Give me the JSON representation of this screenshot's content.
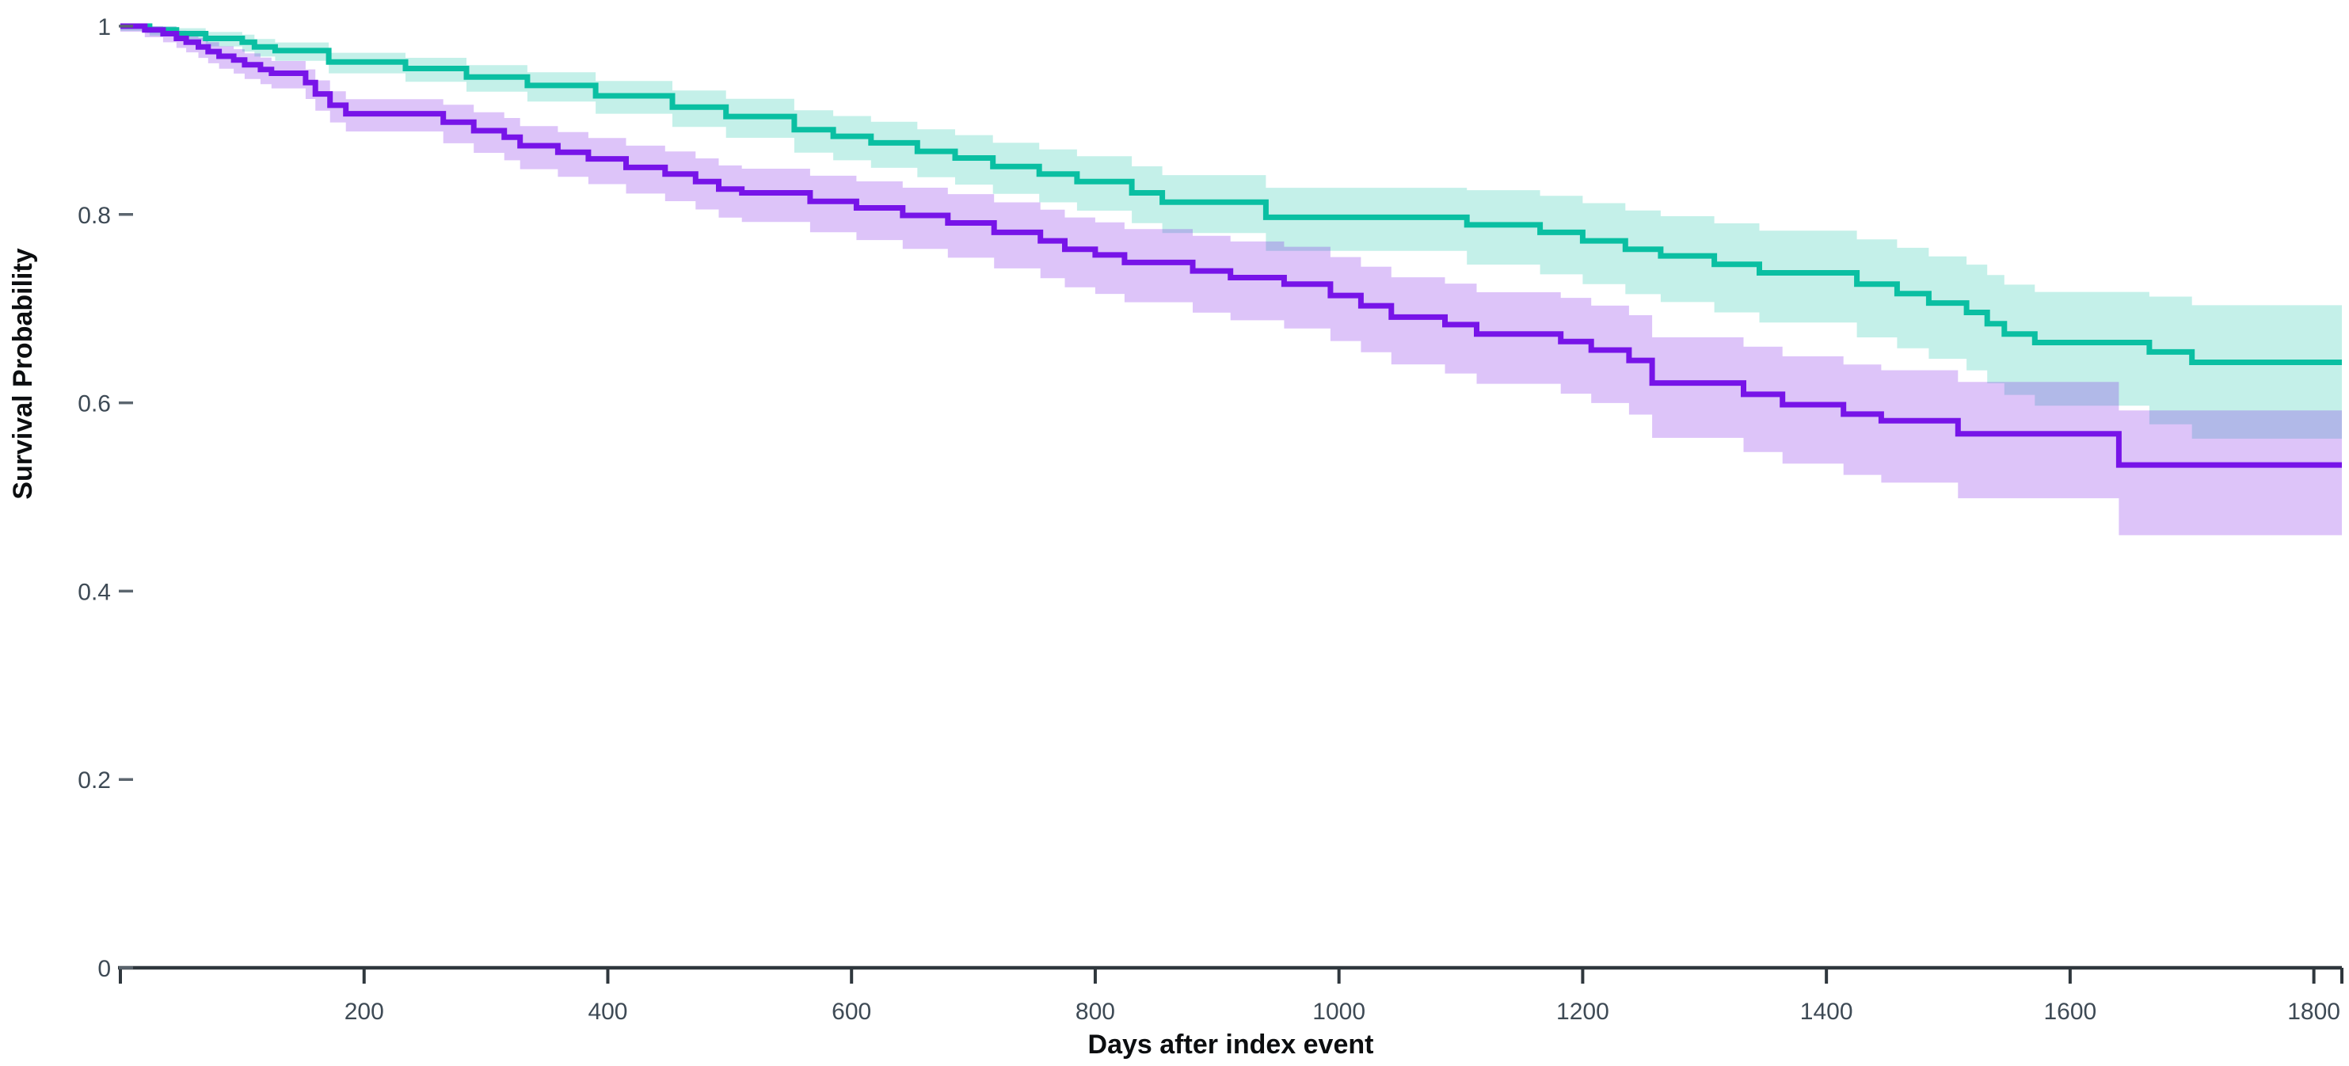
{
  "figure": {
    "background_color": "#ffffff",
    "axis_line_color": "#2f373d",
    "tick_dash_color": "#5c666f",
    "tick_label_color": "#3e4a55"
  },
  "chart_data": {
    "type": "line",
    "variant": "kaplan_meier_survival_step_with_confidence_bands",
    "title": "",
    "xlabel": "Days after index event",
    "ylabel": "Survival Probability",
    "xlim": [
      0,
      1823
    ],
    "ylim": [
      0,
      1
    ],
    "grid": false,
    "legend_position": "none",
    "x_axis": {
      "tick_values": [
        200,
        400,
        600,
        800,
        1000,
        1200,
        1400,
        1600,
        1800
      ],
      "tick_labels": [
        "200",
        "400",
        "600",
        "800",
        "1000",
        "1200",
        "1400",
        "1600",
        "1800"
      ],
      "edge_tick_values": [
        0,
        1823
      ]
    },
    "y_axis": {
      "tick_values": [
        1,
        0.8,
        0.6,
        0.4,
        0.2,
        0
      ],
      "tick_labels": [
        "1",
        "0.8",
        "0.6",
        "0.4",
        "0.2",
        "0"
      ]
    },
    "series": [
      {
        "id": "teal-group",
        "line_color": "#0abfa2",
        "band_fill_color": "#0abfa2",
        "band_fill_opacity": 0.24,
        "final_value": 0.643,
        "t": [
          0,
          24,
          46,
          70,
          100,
          110,
          127,
          171,
          234,
          284,
          334,
          390,
          453,
          497,
          553,
          585,
          616,
          654,
          685,
          716,
          754,
          785,
          830,
          855,
          940,
          1105,
          1165,
          1200,
          1235,
          1264,
          1308,
          1345,
          1425,
          1458,
          1484,
          1515,
          1532,
          1546,
          1571,
          1665,
          1700,
          1823
        ],
        "s": [
          1,
          0.996,
          0.992,
          0.987,
          0.983,
          0.978,
          0.974,
          0.962,
          0.955,
          0.946,
          0.937,
          0.926,
          0.914,
          0.904,
          0.89,
          0.883,
          0.876,
          0.867,
          0.86,
          0.851,
          0.843,
          0.835,
          0.823,
          0.813,
          0.797,
          0.789,
          0.781,
          0.772,
          0.763,
          0.756,
          0.747,
          0.738,
          0.726,
          0.716,
          0.706,
          0.696,
          0.684,
          0.673,
          0.664,
          0.654,
          0.643,
          0.643
        ],
        "ci": {
          "t": [
            0,
            100,
            300,
            600,
            900,
            1200,
            1500,
            1650,
            1823
          ],
          "upper_offset": [
            0.004,
            0.008,
            0.013,
            0.022,
            0.03,
            0.04,
            0.05,
            0.058,
            0.067
          ],
          "lower_offset": [
            0.005,
            0.01,
            0.016,
            0.026,
            0.034,
            0.046,
            0.06,
            0.075,
            0.096
          ]
        }
      },
      {
        "id": "purple-group",
        "line_color": "#7714e8",
        "band_fill_color": "#7714e8",
        "band_fill_opacity": 0.25,
        "final_value": 0.534,
        "t": [
          0,
          20,
          35,
          46,
          54,
          64,
          72,
          81,
          93,
          102,
          115,
          124,
          152,
          160,
          172,
          185,
          265,
          290,
          315,
          328,
          359,
          384,
          415,
          447,
          472,
          491,
          510,
          566,
          604,
          642,
          679,
          717,
          755,
          775,
          800,
          824,
          880,
          911,
          955,
          993,
          1018,
          1043,
          1087,
          1113,
          1182,
          1207,
          1238,
          1257,
          1332,
          1364,
          1414,
          1445,
          1508,
          1640,
          1823
        ],
        "s": [
          1,
          0.996,
          0.992,
          0.987,
          0.983,
          0.978,
          0.973,
          0.968,
          0.964,
          0.959,
          0.954,
          0.95,
          0.94,
          0.928,
          0.916,
          0.907,
          0.898,
          0.889,
          0.882,
          0.873,
          0.866,
          0.859,
          0.85,
          0.843,
          0.835,
          0.827,
          0.823,
          0.814,
          0.807,
          0.799,
          0.791,
          0.781,
          0.772,
          0.763,
          0.757,
          0.749,
          0.74,
          0.733,
          0.726,
          0.714,
          0.703,
          0.691,
          0.683,
          0.673,
          0.665,
          0.656,
          0.645,
          0.621,
          0.609,
          0.598,
          0.588,
          0.581,
          0.567,
          0.534,
          0.534
        ],
        "ci": {
          "t": [
            0,
            100,
            300,
            600,
            900,
            1200,
            1500,
            1650,
            1823
          ],
          "upper_offset": [
            0.005,
            0.012,
            0.02,
            0.028,
            0.038,
            0.047,
            0.055,
            0.058,
            0.06
          ],
          "lower_offset": [
            0.006,
            0.015,
            0.024,
            0.034,
            0.045,
            0.056,
            0.068,
            0.075,
            0.079
          ]
        }
      }
    ]
  }
}
